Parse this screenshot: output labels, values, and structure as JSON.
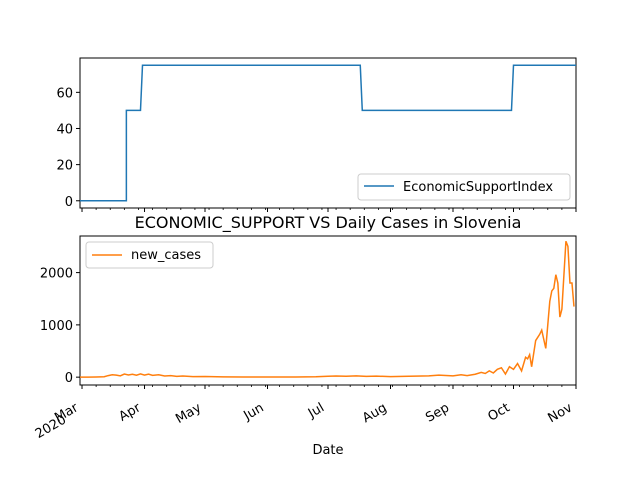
{
  "chart_data": [
    {
      "type": "line",
      "title": "",
      "xlabel": "",
      "ylabel": "",
      "ylim": [
        -4,
        79
      ],
      "yticks": [
        0,
        20,
        40,
        60
      ],
      "legend": "bottom-right",
      "grid": false,
      "series": [
        {
          "name": "EconomicSupportIndex",
          "color": "#1f77b4",
          "points": [
            [
              "2020-02-29",
              0
            ],
            [
              "2020-03-23",
              0
            ],
            [
              "2020-03-23",
              50
            ],
            [
              "2020-03-30",
              50
            ],
            [
              "2020-03-31",
              75
            ],
            [
              "2020-07-17",
              75
            ],
            [
              "2020-07-18",
              50
            ],
            [
              "2020-09-30",
              50
            ],
            [
              "2020-10-01",
              75
            ],
            [
              "2020-11-01",
              75
            ]
          ]
        }
      ]
    },
    {
      "type": "line",
      "title": "ECONOMIC_SUPPORT VS Daily Cases in Slovenia",
      "xlabel": "Date",
      "ylabel": "",
      "ylim": [
        -150,
        2700
      ],
      "yticks": [
        0,
        1000,
        2000
      ],
      "legend": "top-left",
      "grid": false,
      "x_tick_labels": [
        "Mar\n2020",
        "Apr",
        "May",
        "Jun",
        "Jul",
        "Aug",
        "Sep",
        "Oct",
        "Nov"
      ],
      "series": [
        {
          "name": "new_cases",
          "color": "#ff7f0e",
          "points": [
            [
              "2020-02-29",
              0
            ],
            [
              "2020-03-04",
              1
            ],
            [
              "2020-03-08",
              3
            ],
            [
              "2020-03-12",
              8
            ],
            [
              "2020-03-14",
              30
            ],
            [
              "2020-03-16",
              45
            ],
            [
              "2020-03-18",
              38
            ],
            [
              "2020-03-20",
              25
            ],
            [
              "2020-03-22",
              60
            ],
            [
              "2020-03-24",
              42
            ],
            [
              "2020-03-26",
              55
            ],
            [
              "2020-03-28",
              38
            ],
            [
              "2020-03-30",
              62
            ],
            [
              "2020-04-01",
              40
            ],
            [
              "2020-04-03",
              58
            ],
            [
              "2020-04-05",
              35
            ],
            [
              "2020-04-08",
              45
            ],
            [
              "2020-04-11",
              22
            ],
            [
              "2020-04-14",
              30
            ],
            [
              "2020-04-17",
              15
            ],
            [
              "2020-04-20",
              22
            ],
            [
              "2020-04-25",
              10
            ],
            [
              "2020-05-01",
              12
            ],
            [
              "2020-05-10",
              5
            ],
            [
              "2020-05-20",
              2
            ],
            [
              "2020-06-01",
              2
            ],
            [
              "2020-06-15",
              4
            ],
            [
              "2020-06-25",
              8
            ],
            [
              "2020-07-01",
              18
            ],
            [
              "2020-07-05",
              22
            ],
            [
              "2020-07-10",
              18
            ],
            [
              "2020-07-15",
              25
            ],
            [
              "2020-07-20",
              15
            ],
            [
              "2020-07-25",
              20
            ],
            [
              "2020-08-01",
              10
            ],
            [
              "2020-08-10",
              18
            ],
            [
              "2020-08-20",
              25
            ],
            [
              "2020-08-25",
              40
            ],
            [
              "2020-09-01",
              25
            ],
            [
              "2020-09-05",
              45
            ],
            [
              "2020-09-08",
              30
            ],
            [
              "2020-09-12",
              55
            ],
            [
              "2020-09-15",
              90
            ],
            [
              "2020-09-17",
              70
            ],
            [
              "2020-09-19",
              120
            ],
            [
              "2020-09-21",
              80
            ],
            [
              "2020-09-23",
              150
            ],
            [
              "2020-09-25",
              180
            ],
            [
              "2020-09-27",
              60
            ],
            [
              "2020-09-29",
              200
            ],
            [
              "2020-10-01",
              150
            ],
            [
              "2020-10-03",
              260
            ],
            [
              "2020-10-05",
              120
            ],
            [
              "2020-10-07",
              380
            ],
            [
              "2020-10-08",
              350
            ],
            [
              "2020-10-09",
              430
            ],
            [
              "2020-10-10",
              200
            ],
            [
              "2020-10-12",
              700
            ],
            [
              "2020-10-14",
              820
            ],
            [
              "2020-10-15",
              900
            ],
            [
              "2020-10-17",
              550
            ],
            [
              "2020-10-19",
              1450
            ],
            [
              "2020-10-20",
              1650
            ],
            [
              "2020-10-21",
              1700
            ],
            [
              "2020-10-22",
              1960
            ],
            [
              "2020-10-23",
              1800
            ],
            [
              "2020-10-24",
              1150
            ],
            [
              "2020-10-25",
              1300
            ],
            [
              "2020-10-27",
              2600
            ],
            [
              "2020-10-28",
              2500
            ],
            [
              "2020-10-29",
              1800
            ],
            [
              "2020-10-30",
              1800
            ],
            [
              "2020-10-31",
              1350
            ]
          ]
        }
      ]
    }
  ]
}
